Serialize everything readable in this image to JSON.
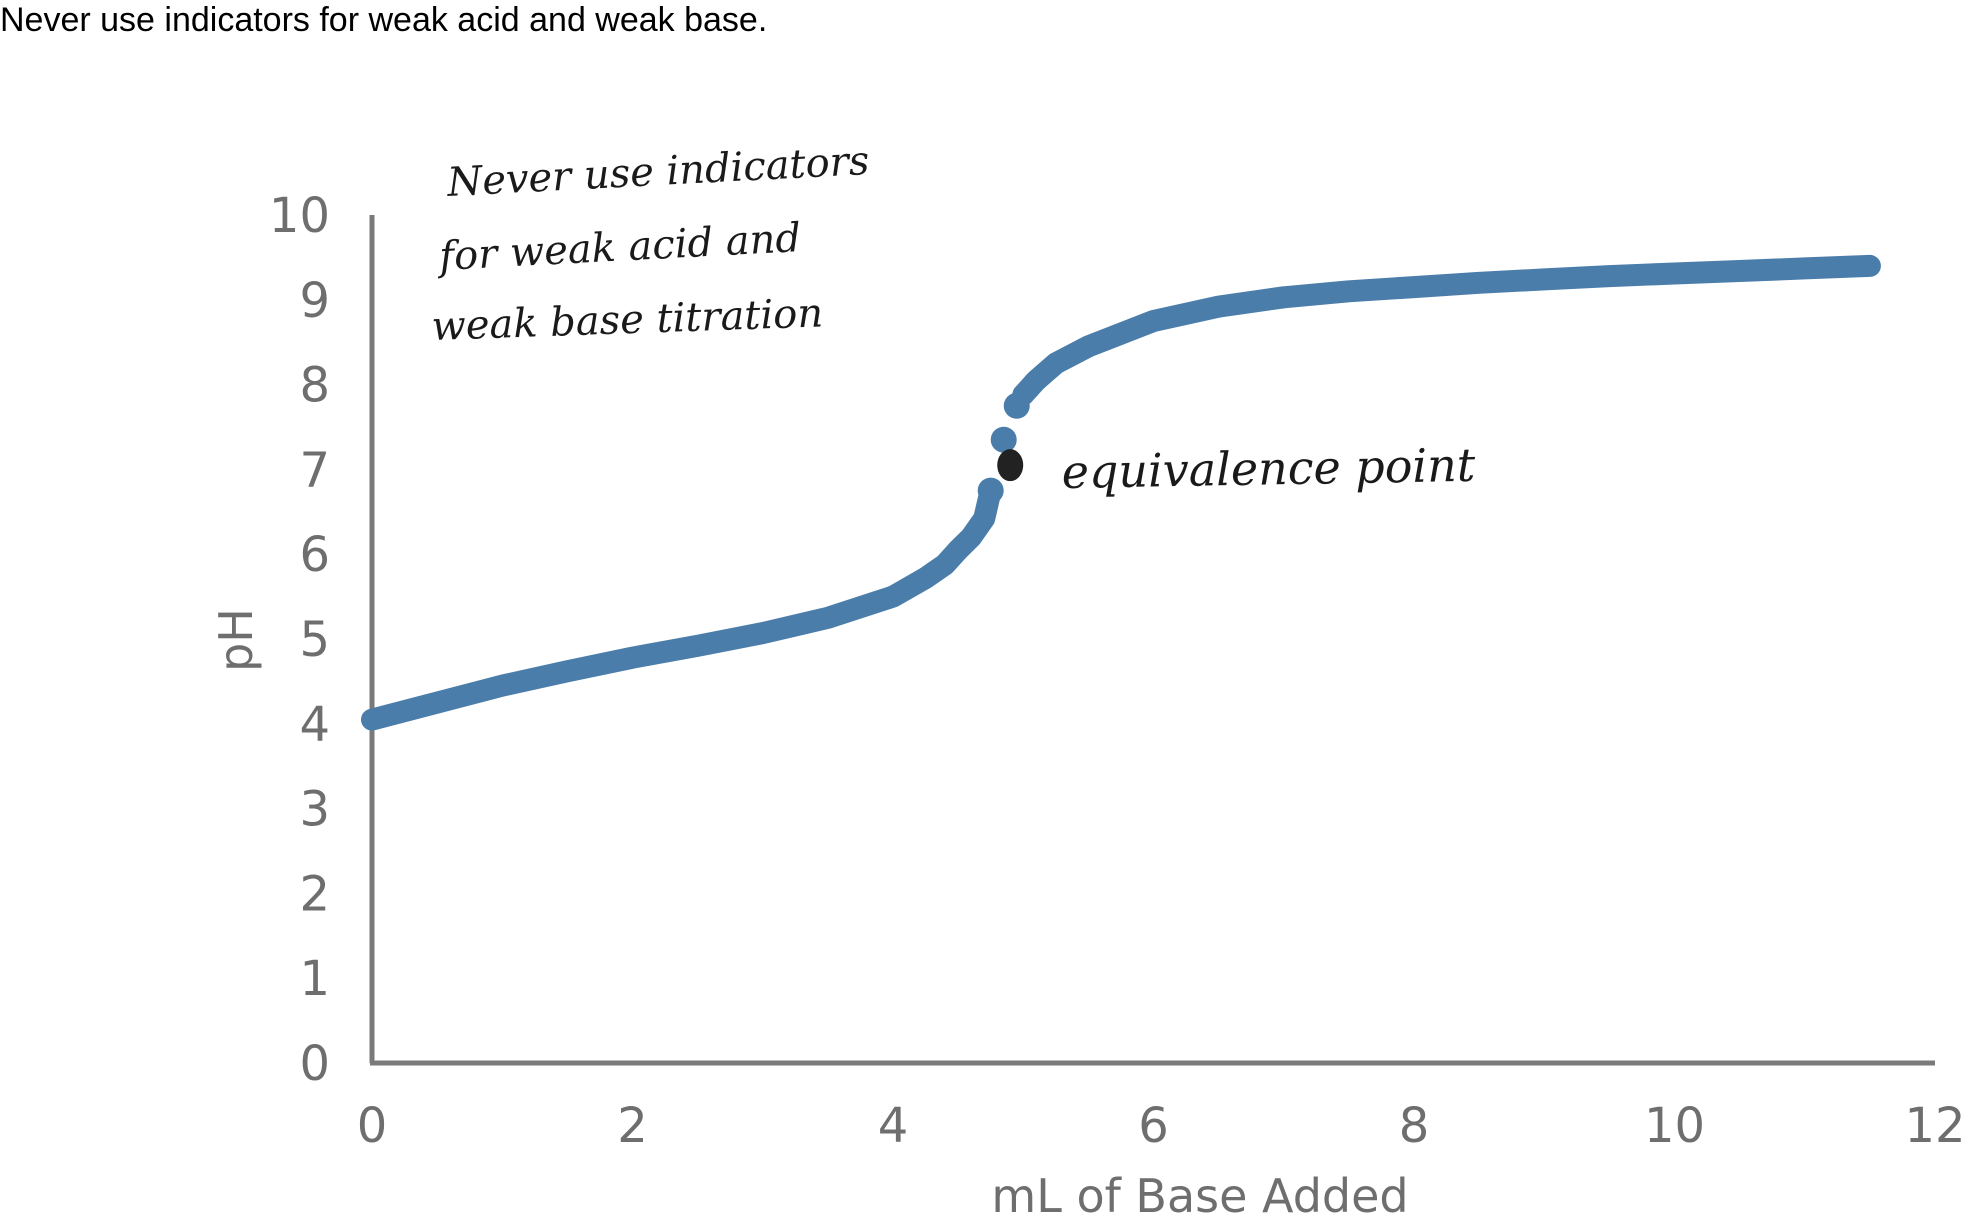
{
  "header": {
    "note": "Never use indicators for weak acid and weak base."
  },
  "annotations": {
    "handwritten_note": [
      "Never use indicators",
      "for weak acid and",
      "weak base titration"
    ],
    "equivalence_label": "equivalence point"
  },
  "chart_data": {
    "type": "scatter",
    "title": "",
    "xlabel": "mL of Base Added",
    "ylabel": "pH",
    "xlim": [
      0,
      12
    ],
    "ylim": [
      0,
      10
    ],
    "x_ticks": [
      "0",
      "2",
      "4",
      "6",
      "8",
      "10",
      "12"
    ],
    "y_ticks": [
      "0",
      "1",
      "2",
      "3",
      "4",
      "5",
      "6",
      "7",
      "8",
      "9",
      "10"
    ],
    "grid": false,
    "legend": "none",
    "series": [
      {
        "color": "#4a7daa",
        "x": [
          0,
          0.5,
          1,
          1.5,
          2,
          2.5,
          3,
          3.5,
          4,
          4.25,
          4.4,
          4.5,
          4.6,
          4.7,
          4.75,
          4.85,
          4.95,
          5,
          5.1,
          5.25,
          5.5,
          6,
          6.5,
          7,
          7.5,
          8,
          8.5,
          9,
          9.5,
          10,
          10.5,
          11,
          11.5
        ],
        "y": [
          4.05,
          4.25,
          4.45,
          4.62,
          4.78,
          4.92,
          5.07,
          5.25,
          5.5,
          5.72,
          5.88,
          6.05,
          6.2,
          6.42,
          6.75,
          7.35,
          7.75,
          7.88,
          8.05,
          8.25,
          8.45,
          8.75,
          8.92,
          9.03,
          9.1,
          9.15,
          9.2,
          9.24,
          9.28,
          9.31,
          9.34,
          9.37,
          9.4
        ]
      }
    ],
    "highlight": {
      "x": 4.9,
      "y": 7.05,
      "color": "#222222"
    }
  }
}
